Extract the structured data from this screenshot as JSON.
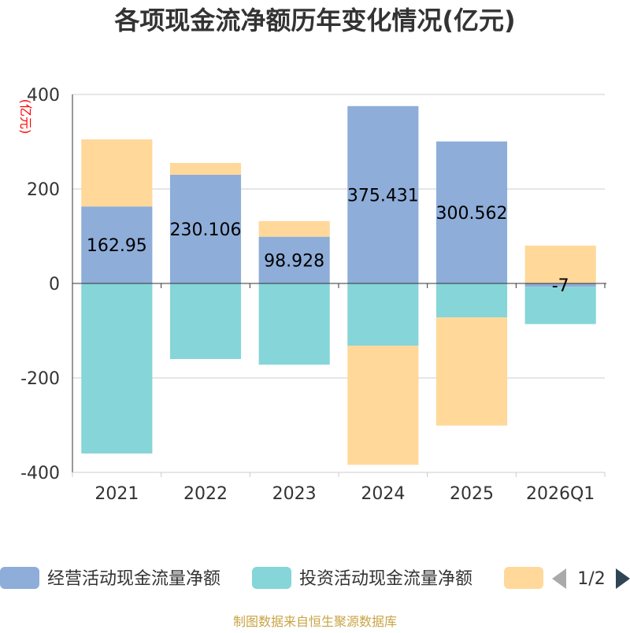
{
  "chart_data": {
    "type": "bar",
    "stacked": true,
    "title": "各项现金流净额历年变化情况(亿元)",
    "y_unit": "(亿元)",
    "categories": [
      "2021",
      "2022",
      "2023",
      "2024",
      "2025",
      "2026Q1"
    ],
    "ylim": [
      -400,
      400
    ],
    "yticks": [
      -400,
      -200,
      0,
      200,
      400
    ],
    "grid": true,
    "series": [
      {
        "name": "经营活动现金流量净额",
        "color": "#8eadd9",
        "values": [
          162.95,
          230.106,
          98.928,
          375.431,
          300.562,
          -7
        ],
        "labels": [
          "162.95",
          "230.106",
          "98.928",
          "375.431",
          "300.562",
          "-7"
        ]
      },
      {
        "name": "投资活动现金流量净额",
        "color": "#86d5d8",
        "values": [
          -360,
          -160,
          -172,
          -132,
          -72,
          -79
        ]
      },
      {
        "name": "",
        "color": "#ffd89a",
        "values": [
          142,
          25,
          33,
          -252,
          -229,
          80
        ]
      }
    ],
    "legend": {
      "position": "bottom",
      "page": "1/2"
    },
    "source": "制图数据来自恒生聚源数据库"
  }
}
